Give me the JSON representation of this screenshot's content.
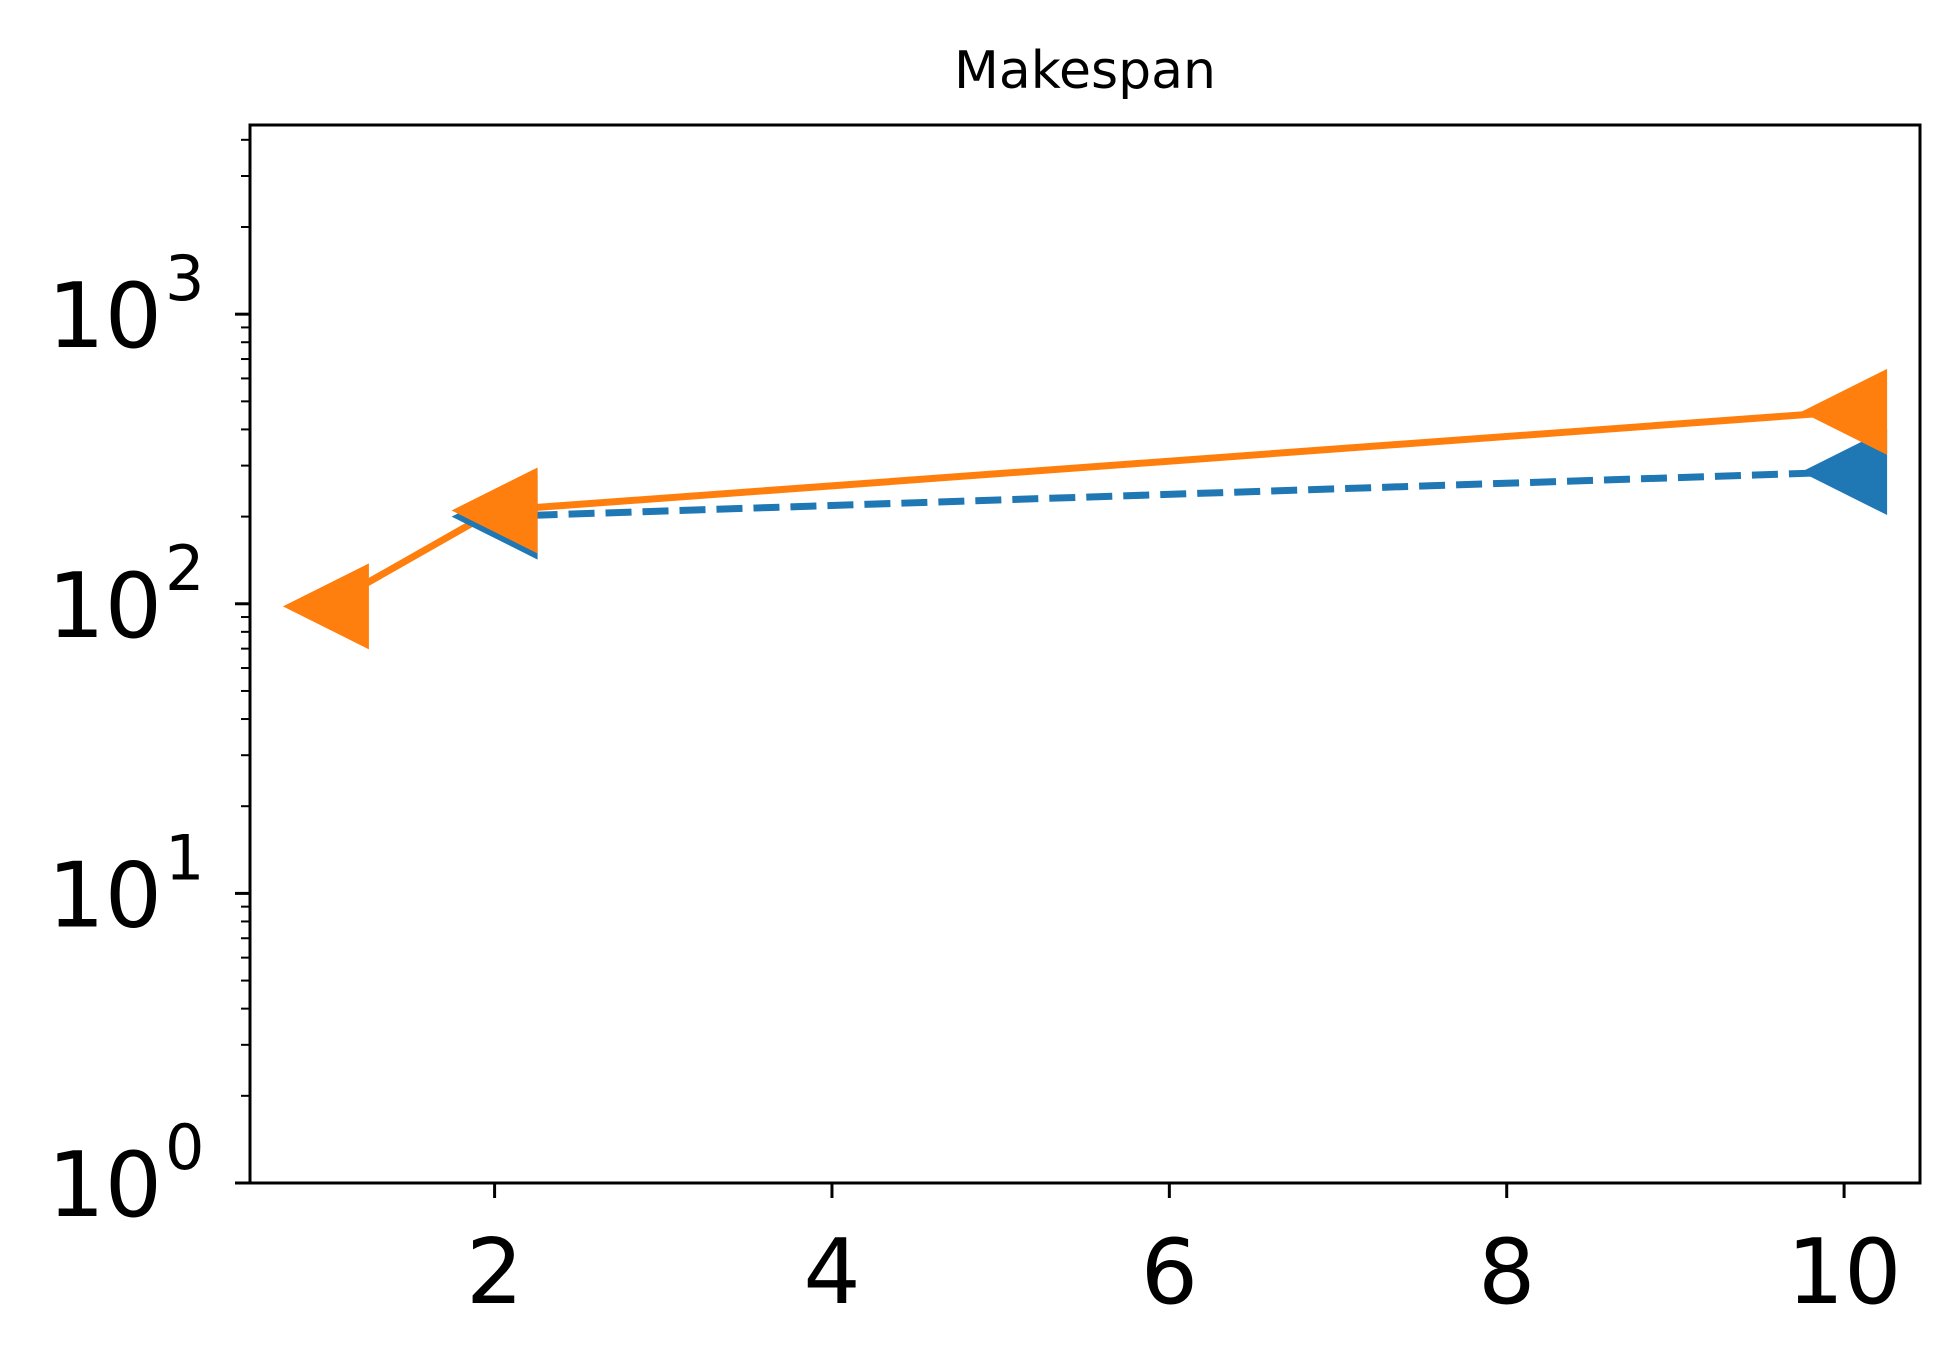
{
  "chart_data": {
    "type": "line",
    "title": "Makespan",
    "xlabel": "",
    "ylabel": "",
    "yscale": "log",
    "xlim": [
      0.55,
      10.45
    ],
    "ylim": [
      1,
      4500
    ],
    "x_ticks": [
      2,
      4,
      6,
      8,
      10
    ],
    "x_tick_labels": [
      "2",
      "4",
      "6",
      "8",
      "10"
    ],
    "y_ticks": [
      1,
      10,
      100,
      1000
    ],
    "y_tick_labels": [
      {
        "base": "10",
        "exp": "0"
      },
      {
        "base": "10",
        "exp": "1"
      },
      {
        "base": "10",
        "exp": "2"
      },
      {
        "base": "10",
        "exp": "3"
      }
    ],
    "grid": false,
    "series": [
      {
        "color": "#1f77b4",
        "linestyle": "dashed",
        "marker": "triangle-left",
        "x": [
          2,
          10
        ],
        "y": [
          200,
          285
        ]
      },
      {
        "color": "#ff7f0e",
        "linestyle": "solid",
        "marker": "triangle-left",
        "x": [
          1,
          2,
          10
        ],
        "y": [
          98,
          210,
          460
        ]
      }
    ]
  }
}
